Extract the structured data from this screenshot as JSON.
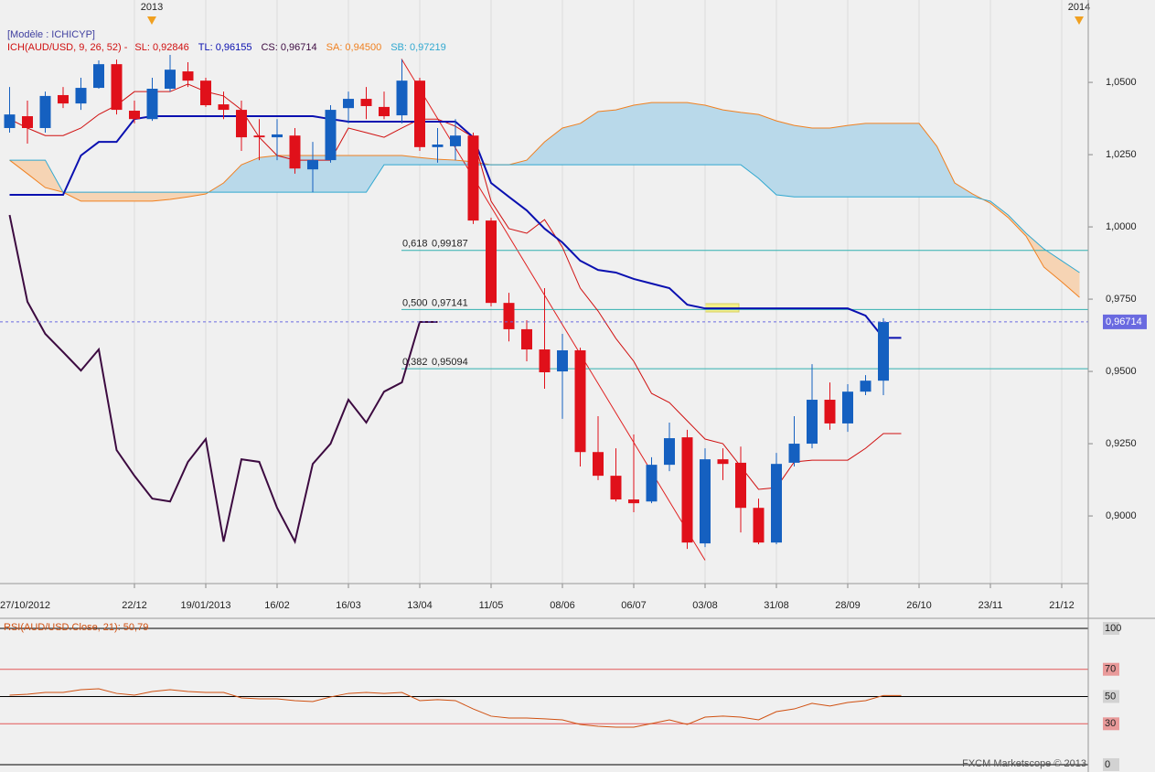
{
  "chart_data": [
    {
      "type": "candlestick",
      "subtitle": "[Modèle : ICHICYP]",
      "indicator": "ICH(AUD/USD, 9, 26, 52) -",
      "indicator_color": "#d01010",
      "year_labels": [
        "2013",
        "2014"
      ],
      "year_color": "#f0a020",
      "credit": "FXCM Marketscope © 2013",
      "grid": true,
      "categories": [
        "27/10/2012",
        null,
        null,
        null,
        null,
        null,
        null,
        null,
        "22/12",
        null,
        null,
        null,
        "19/01/2013",
        null,
        null,
        null,
        "16/02",
        null,
        null,
        null,
        "16/03",
        null,
        null,
        null,
        "13/04",
        null,
        null,
        null,
        "11/05",
        null,
        null,
        null,
        "08/06",
        null,
        null,
        null,
        "06/07",
        null,
        null,
        null,
        "03/08",
        null,
        null,
        null,
        "31/08",
        null,
        null,
        null,
        "28/09",
        null,
        null,
        null,
        "26/10",
        null,
        null,
        null,
        "23/11",
        null,
        null,
        null,
        "21/12",
        null
      ],
      "open": [
        null,
        1.0342,
        1.0383,
        1.0342,
        1.0456,
        1.0427,
        1.0481,
        1.0563,
        1.0402,
        1.0373,
        1.0478,
        1.0538,
        1.0506,
        1.0424,
        1.0405,
        1.0316,
        1.031,
        1.0316,
        1.0199,
        1.0231,
        1.0411,
        1.0443,
        1.0415,
        1.0386,
        1.0506,
        1.0276,
        1.0279,
        1.0316,
        1.0022,
        0.9737,
        0.9646,
        0.9576,
        0.95,
        0.9573,
        0.9221,
        0.9139,
        0.9057,
        0.905,
        0.9177,
        0.9272,
        0.8905,
        0.9196,
        0.9184,
        0.9028,
        0.8908,
        0.9184,
        0.925,
        0.9402,
        0.932,
        0.943,
        0.9468,
        null,
        null,
        null,
        null,
        null,
        null,
        null,
        null,
        null,
        null,
        null
      ],
      "high": [
        null,
        1.0484,
        1.0437,
        1.0468,
        1.0484,
        1.0516,
        1.0576,
        1.0579,
        1.0437,
        1.0516,
        1.0595,
        1.057,
        1.0516,
        1.0468,
        1.0437,
        1.0373,
        1.0373,
        1.0342,
        1.0294,
        1.0421,
        1.0468,
        1.0484,
        1.0468,
        1.0579,
        1.0516,
        1.0342,
        1.0373,
        1.0326,
        1.0032,
        0.9772,
        0.9677,
        0.9788,
        0.963,
        0.9582,
        0.9345,
        0.9234,
        0.9282,
        0.9203,
        0.9323,
        0.9298,
        0.9234,
        0.9234,
        0.924,
        0.906,
        0.9218,
        0.9345,
        0.9525,
        0.9462,
        0.9456,
        0.9487,
        0.9684,
        null,
        null,
        null,
        null,
        null,
        null,
        null,
        null,
        null,
        null,
        null
      ],
      "low": [
        null,
        1.0326,
        1.0288,
        1.0326,
        1.0411,
        1.0405,
        1.0478,
        1.0389,
        1.0358,
        1.0367,
        1.0468,
        1.0484,
        1.0415,
        1.0373,
        1.0263,
        1.0231,
        1.0231,
        1.0184,
        1.012,
        1.0222,
        1.0358,
        1.0373,
        1.0373,
        1.0358,
        1.0263,
        1.0222,
        1.0231,
        1.001,
        0.9725,
        0.9604,
        0.9535,
        0.944,
        0.9336,
        0.9171,
        0.9124,
        0.905,
        0.9013,
        0.9044,
        0.9155,
        0.8886,
        0.8892,
        0.9124,
        0.8943,
        0.8902,
        0.8902,
        0.9171,
        0.9234,
        0.9298,
        0.9291,
        0.9418,
        0.9418,
        null,
        null,
        null,
        null,
        null,
        null,
        null,
        null,
        null,
        null,
        null
      ],
      "close": [
        null,
        1.0389,
        1.0342,
        1.0453,
        1.0427,
        1.0481,
        1.0563,
        1.0405,
        1.0373,
        1.0478,
        1.0544,
        1.0506,
        1.0421,
        1.0405,
        1.031,
        1.031,
        1.032,
        1.0202,
        1.0231,
        1.0405,
        1.0443,
        1.0418,
        1.0383,
        1.0506,
        1.0276,
        1.0285,
        1.0316,
        1.0022,
        0.9737,
        0.9646,
        0.9576,
        0.9497,
        0.9573,
        0.9221,
        0.9139,
        0.9057,
        0.9044,
        0.9177,
        0.9269,
        0.8908,
        0.9196,
        0.918,
        0.9028,
        0.8908,
        0.918,
        0.925,
        0.9402,
        0.932,
        0.943,
        0.9468,
        0.9671,
        null,
        null,
        null,
        null,
        null,
        null,
        null,
        null,
        null,
        null,
        null
      ],
      "up_color": "#1560c0",
      "down_color": "#e0101a",
      "series": [
        {
          "name": "SL: 0,92846",
          "color": "#d01010",
          "line_width": 1,
          "values": [
            null,
            1.0373,
            1.0342,
            1.0316,
            1.0316,
            1.0342,
            1.0389,
            1.0421,
            1.0468,
            1.0468,
            1.0468,
            1.0494,
            1.0468,
            1.0453,
            1.0405,
            1.031,
            1.0247,
            1.0231,
            1.0231,
            1.0231,
            1.0342,
            1.0326,
            1.031,
            1.0342,
            1.0373,
            1.0373,
            1.0348,
            1.031,
            1.0089,
            0.9994,
            0.9978,
            1.0025,
            0.993,
            0.9788,
            0.9709,
            0.9614,
            0.9535,
            0.9424,
            0.9392,
            0.9329,
            0.9266,
            0.925,
            0.9171,
            0.9092,
            0.9098,
            0.9187,
            0.9193,
            0.9193,
            0.9193,
            0.9234,
            0.9285,
            0.9285,
            null,
            null,
            null,
            null,
            null,
            null,
            null,
            null,
            null,
            null
          ]
        },
        {
          "name": "TL: 0,96155",
          "color": "#0a10b0",
          "line_width": 2,
          "values": [
            null,
            1.0111,
            1.0111,
            1.0111,
            1.0111,
            1.0247,
            1.0294,
            1.0294,
            1.0373,
            1.0383,
            1.0383,
            1.0383,
            1.0383,
            1.0383,
            1.0383,
            1.0383,
            1.0383,
            1.0383,
            1.0383,
            1.0373,
            1.0364,
            1.0364,
            1.0364,
            1.0364,
            1.0364,
            1.0364,
            1.0364,
            1.031,
            1.0152,
            1.0104,
            1.0057,
            0.9994,
            0.9946,
            0.9883,
            0.9851,
            0.9842,
            0.982,
            0.9804,
            0.9788,
            0.9731,
            0.9718,
            0.9718,
            0.9718,
            0.9718,
            0.9718,
            0.9718,
            0.9718,
            0.9718,
            0.9718,
            0.9693,
            0.9616,
            0.9616,
            null,
            null,
            null,
            null,
            null,
            null,
            null,
            null,
            null,
            null
          ]
        },
        {
          "name": "CS: 0,96714",
          "color": "#3c0a40",
          "line_width": 2,
          "values": [
            null,
            1.0041,
            0.9741,
            0.963,
            0.9567,
            0.9503,
            0.9576,
            0.9228,
            0.9139,
            0.906,
            0.905,
            0.9187,
            0.9266,
            0.8911,
            0.9196,
            0.9187,
            0.9028,
            0.8911,
            0.918,
            0.925,
            0.9402,
            0.9323,
            0.943,
            0.9462,
            0.9671,
            0.9671,
            null,
            null,
            null,
            null,
            null,
            null,
            null,
            null,
            null,
            null,
            null,
            null,
            null,
            null,
            null,
            null,
            null,
            null,
            null,
            null,
            null,
            null,
            null,
            null,
            null,
            null,
            null,
            null,
            null,
            null,
            null,
            null,
            null,
            null,
            null,
            null
          ]
        },
        {
          "name": "SA: 0,94500",
          "color": "#f08020",
          "line_width": 1,
          "values": [
            null,
            1.0231,
            1.0184,
            1.0136,
            1.012,
            1.0089,
            1.0089,
            1.0089,
            1.0089,
            1.0089,
            1.0095,
            1.0104,
            1.0114,
            1.0152,
            1.0215,
            1.024,
            1.0247,
            1.0247,
            1.0247,
            1.0247,
            1.0247,
            1.0247,
            1.0247,
            1.0247,
            1.024,
            1.0234,
            1.0231,
            1.0225,
            1.0215,
            1.0215,
            1.0231,
            1.0294,
            1.0342,
            1.0358,
            1.0399,
            1.0405,
            1.0421,
            1.043,
            1.043,
            1.043,
            1.0421,
            1.0405,
            1.0396,
            1.0389,
            1.0367,
            1.0351,
            1.0342,
            1.0342,
            1.0351,
            1.0358,
            1.0358,
            1.0358,
            1.0358,
            1.0279,
            1.0152,
            1.0114,
            1.0082,
            1.0032,
            0.9968,
            0.9861,
            0.981,
            0.9756
          ]
        },
        {
          "name": "SB: 0,97219",
          "color": "#30a8d0",
          "line_width": 1,
          "values": [
            null,
            1.0231,
            1.0231,
            1.0231,
            1.012,
            1.012,
            1.012,
            1.012,
            1.012,
            1.012,
            1.012,
            1.012,
            1.012,
            1.012,
            1.012,
            1.012,
            1.012,
            1.012,
            1.012,
            1.012,
            1.012,
            1.012,
            1.0215,
            1.0215,
            1.0215,
            1.0215,
            1.0215,
            1.0215,
            1.0215,
            1.0215,
            1.0215,
            1.0215,
            1.0215,
            1.0215,
            1.0215,
            1.0215,
            1.0215,
            1.0215,
            1.0215,
            1.0215,
            1.0215,
            1.0215,
            1.0215,
            1.0168,
            1.0111,
            1.0104,
            1.0104,
            1.0104,
            1.0104,
            1.0104,
            1.0104,
            1.0104,
            1.0104,
            1.0104,
            1.0104,
            1.0104,
            1.0089,
            1.0041,
            0.9978,
            0.9924,
            0.9883,
            0.9842
          ]
        }
      ],
      "cloud_colors": {
        "bullish": "#b9d9ea",
        "bearish": "#f6d4b4"
      },
      "ylim": [
        0.8766,
        1.0785
      ],
      "yticks": [
        {
          "value": 1.05,
          "label": "1,0500"
        },
        {
          "value": 1.025,
          "label": "1,0250"
        },
        {
          "value": 1.0,
          "label": "1,0000"
        },
        {
          "value": 0.975,
          "label": "0,9750"
        },
        {
          "value": 0.95,
          "label": "0,9500"
        },
        {
          "value": 0.925,
          "label": "0,9250"
        },
        {
          "value": 0.9,
          "label": "0,9000"
        }
      ],
      "current_price": {
        "value": 0.96714,
        "label": "0,96714",
        "color": "#6a6ae0"
      },
      "fibonacci": {
        "color": "#30b0b0",
        "trend_color": "#e02020",
        "high": 1.05814,
        "low": 0.88467,
        "levels": [
          {
            "ratio": "0,618",
            "value": 0.99187,
            "label": "0,99187"
          },
          {
            "ratio": "0,500",
            "value": 0.97141,
            "label": "0,97141"
          },
          {
            "ratio": "0,382",
            "value": 0.95094,
            "label": "0,95094"
          }
        ]
      }
    },
    {
      "type": "line",
      "title": "RSI(AUD/USD.Close, 21): 50,79",
      "color": "#d05010",
      "values": [
        null,
        51.0,
        51.7,
        53.0,
        53.0,
        55.0,
        55.7,
        52.3,
        51.0,
        53.7,
        55.0,
        53.7,
        53.0,
        53.0,
        49.0,
        48.3,
        48.3,
        47.0,
        46.3,
        49.7,
        52.3,
        53.0,
        52.3,
        53.0,
        47.0,
        47.7,
        47.0,
        40.9,
        35.6,
        34.2,
        34.2,
        33.6,
        32.9,
        29.5,
        28.2,
        27.5,
        27.5,
        30.2,
        32.9,
        29.5,
        34.9,
        35.6,
        34.9,
        32.9,
        38.9,
        40.9,
        45.0,
        43.0,
        45.6,
        47.0,
        50.79,
        50.79,
        null,
        null,
        null,
        null,
        null,
        null,
        null,
        null,
        null,
        null
      ],
      "ylim": [
        -5.4,
        107.4
      ],
      "yticks": [
        100,
        70,
        50,
        30,
        0
      ],
      "level_colors": [
        "#000000",
        "#e03030",
        "#000000",
        "#e03030",
        "#000000"
      ]
    }
  ]
}
